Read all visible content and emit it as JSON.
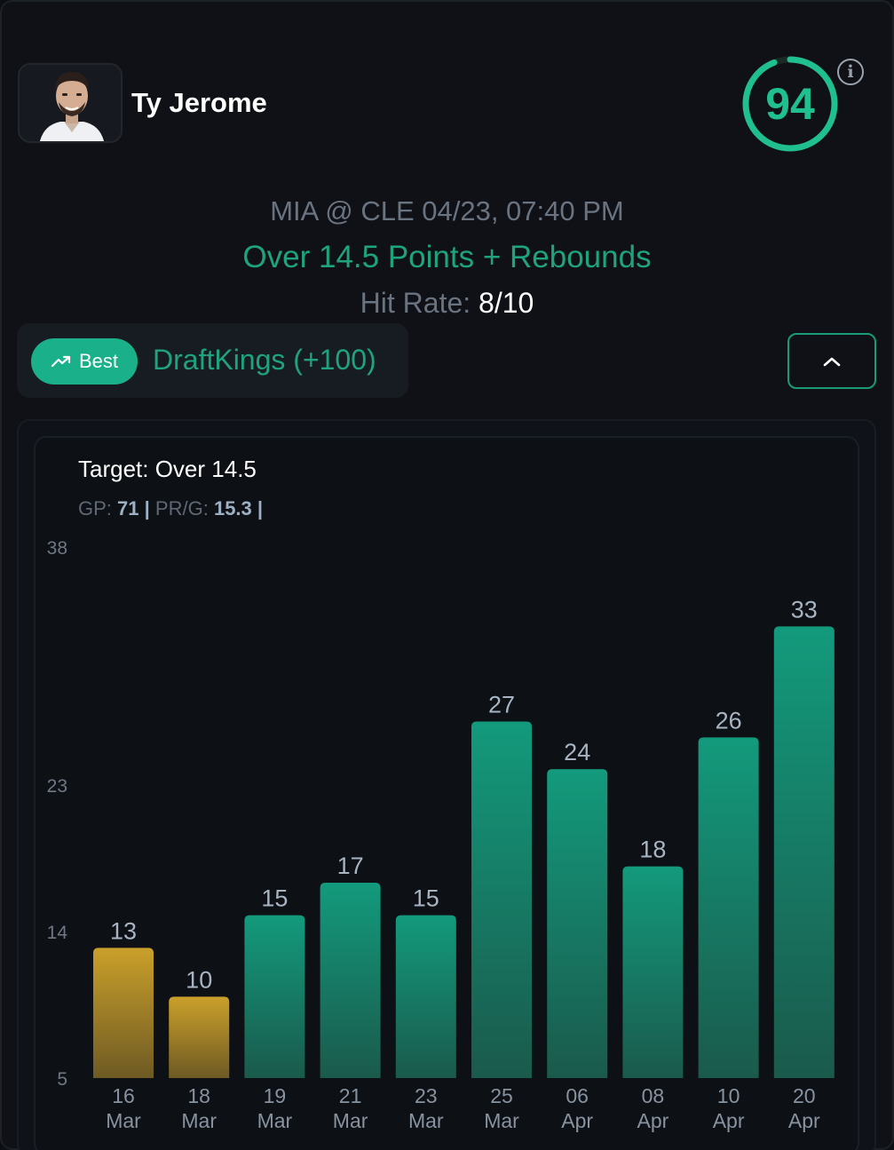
{
  "header": {
    "player_name": "Ty Jerome",
    "score": "94",
    "score_fraction": 0.94,
    "info_icon": "info-icon"
  },
  "game": {
    "matchup": "MIA @ CLE 04/23, 07:40 PM",
    "prop": "Over 14.5 Points + Rebounds",
    "hit_rate_label": "Hit Rate:",
    "hit_rate_value": "8/10"
  },
  "odds": {
    "badge_icon": "trending-up-icon",
    "badge_label": "Best",
    "book": "DraftKings (+100)",
    "toggle_icon": "chevron-up-icon"
  },
  "chart_panel": {
    "target": "Target: Over 14.5",
    "gp_label": "GP:",
    "gp_value": "71",
    "sep1": "|",
    "prg_label": "PR/G:",
    "prg_value": "15.3",
    "sep2": "|"
  },
  "colors": {
    "hit": "#159a7a",
    "miss": "#c9a02a",
    "accent": "#1fbf8f"
  },
  "chart_data": {
    "type": "bar",
    "title": "",
    "target_line": 14.5,
    "ylim": [
      5,
      38
    ],
    "yticks": [
      5,
      14,
      23,
      38
    ],
    "categories": [
      {
        "day": "16",
        "month": "Mar"
      },
      {
        "day": "18",
        "month": "Mar"
      },
      {
        "day": "19",
        "month": "Mar"
      },
      {
        "day": "21",
        "month": "Mar"
      },
      {
        "day": "23",
        "month": "Mar"
      },
      {
        "day": "25",
        "month": "Mar"
      },
      {
        "day": "06",
        "month": "Apr"
      },
      {
        "day": "08",
        "month": "Apr"
      },
      {
        "day": "10",
        "month": "Apr"
      },
      {
        "day": "20",
        "month": "Apr"
      }
    ],
    "values": [
      13,
      10,
      15,
      17,
      15,
      27,
      24,
      18,
      26,
      33
    ]
  }
}
